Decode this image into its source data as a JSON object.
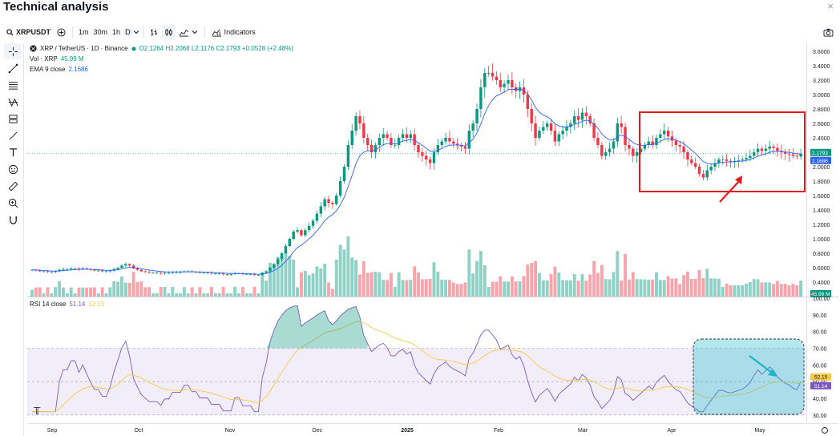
{
  "page": {
    "title": "Technical analysis",
    "close_label": "×"
  },
  "toolbar": {
    "symbol": "XRPUSDT",
    "intervals": [
      "1m",
      "30m",
      "1h",
      "D"
    ],
    "indicators_label": "Indicators"
  },
  "legend": {
    "pair": "XRP / TetherUS · 1D · Binance",
    "ohlc": "O2.1264 H2.2068 L2.1176 C2.1793 +0.0528 (+2.48%)",
    "vol_label": "Vol · XRP",
    "vol_value": "45.99 M",
    "ema_label": "EMA 9 close",
    "ema_value": "2.1686",
    "rsi_label": "RSI 14 close",
    "rsi_value": "51.14",
    "rsi_ma_value": "52.15"
  },
  "colors": {
    "up": "#089981",
    "down": "#f23645",
    "ema": "#2962ff",
    "rsi": "#7e57c2",
    "rsi_ma": "#f7c948",
    "annotation_red": "#e31a1a",
    "annotation_teal": "#17b7c6"
  },
  "chart_data": [
    {
      "type": "candlestick",
      "title": "XRP / TetherUS · 1D · Binance",
      "ylim": [
        0.2,
        3.7
      ],
      "y_ticks": [
        "3.6000",
        "3.4000",
        "3.2000",
        "3.0000",
        "2.8000",
        "2.6000",
        "2.4000",
        "2.2000",
        "2.0000",
        "1.8000",
        "1.6000",
        "1.4000",
        "1.2000",
        "1.0000",
        "0.8000",
        "0.6000",
        "0.4000"
      ],
      "x_labels": [
        "Sep",
        "Oct",
        "Nov",
        "Dec",
        "2025",
        "Feb",
        "Mar",
        "Apr",
        "May"
      ],
      "last_price": "2.1793",
      "ema_last": "2.1686",
      "volume_last": "45.99 M",
      "close_series": [
        0.57,
        0.56,
        0.55,
        0.55,
        0.54,
        0.54,
        0.55,
        0.57,
        0.58,
        0.58,
        0.59,
        0.59,
        0.58,
        0.59,
        0.58,
        0.57,
        0.56,
        0.56,
        0.55,
        0.55,
        0.56,
        0.58,
        0.6,
        0.63,
        0.65,
        0.63,
        0.59,
        0.57,
        0.55,
        0.54,
        0.53,
        0.53,
        0.53,
        0.52,
        0.53,
        0.53,
        0.54,
        0.54,
        0.54,
        0.55,
        0.55,
        0.54,
        0.54,
        0.53,
        0.53,
        0.53,
        0.52,
        0.52,
        0.52,
        0.51,
        0.51,
        0.51,
        0.52,
        0.52,
        0.51,
        0.51,
        0.51,
        0.5,
        0.5,
        0.53,
        0.55,
        0.6,
        0.65,
        0.72,
        0.8,
        0.9,
        1.0,
        1.1,
        1.12,
        1.05,
        1.12,
        1.18,
        1.25,
        1.35,
        1.45,
        1.55,
        1.5,
        1.48,
        1.6,
        1.8,
        2.0,
        2.3,
        2.5,
        2.7,
        2.6,
        2.4,
        2.3,
        2.2,
        2.3,
        2.4,
        2.45,
        2.4,
        2.3,
        2.3,
        2.4,
        2.45,
        2.4,
        2.45,
        2.3,
        2.2,
        2.15,
        2.1,
        2.05,
        2.2,
        2.3,
        2.35,
        2.4,
        2.35,
        2.32,
        2.3,
        2.28,
        2.25,
        2.5,
        2.6,
        2.8,
        3.1,
        3.3,
        3.3,
        3.25,
        3.2,
        3.1,
        3.15,
        3.2,
        3.1,
        3.05,
        3.1,
        3.0,
        2.8,
        2.6,
        2.4,
        2.5,
        2.55,
        2.6,
        2.5,
        2.35,
        2.45,
        2.5,
        2.55,
        2.6,
        2.7,
        2.65,
        2.75,
        2.7,
        2.6,
        2.4,
        2.3,
        2.15,
        2.2,
        2.25,
        2.35,
        2.6,
        2.55,
        2.3,
        2.25,
        2.15,
        2.2,
        2.25,
        2.3,
        2.35,
        2.3,
        2.4,
        2.45,
        2.5,
        2.42,
        2.36,
        2.3,
        2.28,
        2.2,
        2.1,
        2.05,
        2.0,
        1.9,
        1.85,
        1.95,
        2.0,
        2.05,
        2.1,
        2.1,
        2.08,
        2.07,
        2.08,
        2.09,
        2.1,
        2.12,
        2.15,
        2.2,
        2.25,
        2.22,
        2.25,
        2.28,
        2.26,
        2.22,
        2.2,
        2.18,
        2.17,
        2.15,
        2.14,
        2.18
      ],
      "annotation": "Red box around April–May consolidation with red upward arrow"
    },
    {
      "type": "line",
      "title": "RSI 14 close",
      "ylim": [
        28,
        100
      ],
      "y_ticks": [
        "100.00",
        "90.00",
        "80.00",
        "70.00",
        "60.00",
        "50.00",
        "40.00",
        "30.00"
      ],
      "band": [
        30,
        70
      ],
      "rsi_last": "51.14",
      "rsi_ma_last": "52.15",
      "annotation": "Blue dashed box around late-April/May RSI with teal downward arrow"
    }
  ]
}
